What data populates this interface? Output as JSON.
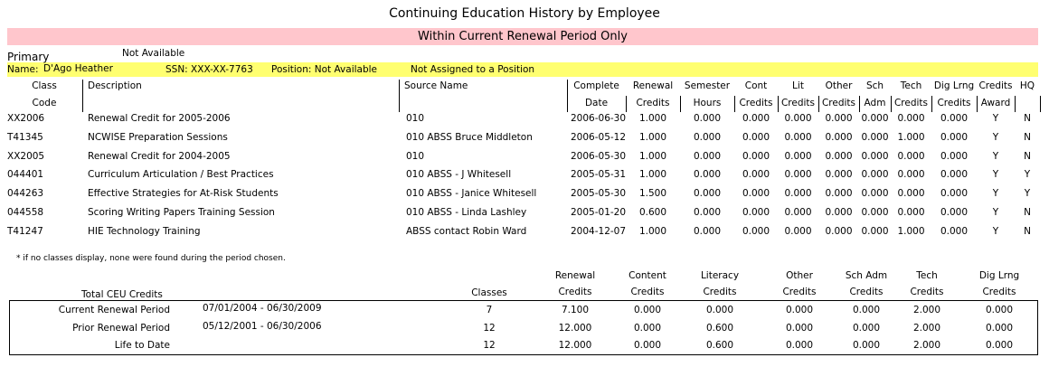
{
  "title": "Continuing Education History by Employee",
  "banner": "Within Current Renewal Period Only",
  "employee": {
    "primary_label": "Primary",
    "status": "Not Available",
    "name_label": "Name:",
    "name": "D'Ago Heather",
    "ssn": "SSN: XXX-XX-7763",
    "position": "Position:  Not Available",
    "assignment": "Not Assigned to a Position"
  },
  "table": {
    "headers": [
      [
        "Class",
        "Code"
      ],
      [
        "Description"
      ],
      [
        "Source Name"
      ],
      [
        "Complete",
        "Date"
      ],
      [
        "Renewal",
        "Credits"
      ],
      [
        "Semester",
        "Hours"
      ],
      [
        "Cont",
        "Credits"
      ],
      [
        "Lit",
        "Credits"
      ],
      [
        "Other",
        "Credits"
      ],
      [
        "Sch",
        "Adm"
      ],
      [
        "Tech",
        "Credits"
      ],
      [
        "Dig Lrng",
        "Credits"
      ],
      [
        "Credits",
        "Award"
      ],
      [
        "HQ"
      ]
    ],
    "rows": [
      [
        "XX2006",
        "Renewal Credit for 2005-2006",
        "010",
        "2006-06-30",
        "1.000",
        "0.000",
        "0.000",
        "0.000",
        "0.000",
        "0.000",
        "0.000",
        "0.000",
        "Y",
        "N"
      ],
      [
        "T41345",
        "NCWISE Preparation Sessions",
        "010 ABSS Bruce Middleton",
        "2006-05-12",
        "1.000",
        "0.000",
        "0.000",
        "0.000",
        "0.000",
        "0.000",
        "1.000",
        "0.000",
        "Y",
        "N"
      ],
      [
        "XX2005",
        "Renewal Credit for 2004-2005",
        "010",
        "2006-05-30",
        "1.000",
        "0.000",
        "0.000",
        "0.000",
        "0.000",
        "0.000",
        "0.000",
        "0.000",
        "Y",
        "N"
      ],
      [
        "044401",
        "Curriculum Articulation / Best Practices",
        "010 ABSS - J Whitesell",
        "2005-05-31",
        "1.000",
        "0.000",
        "0.000",
        "0.000",
        "0.000",
        "0.000",
        "0.000",
        "0.000",
        "Y",
        "Y"
      ],
      [
        "044263",
        "Effective Strategies for At-Risk Students",
        "010 ABSS - Janice Whitesell",
        "2005-05-30",
        "1.500",
        "0.000",
        "0.000",
        "0.000",
        "0.000",
        "0.000",
        "0.000",
        "0.000",
        "Y",
        "Y"
      ],
      [
        "044558",
        "Scoring Writing Papers Training Session",
        "010 ABSS - Linda Lashley",
        "2005-01-20",
        "0.600",
        "0.000",
        "0.000",
        "0.000",
        "0.000",
        "0.000",
        "0.000",
        "0.000",
        "Y",
        "N"
      ],
      [
        "T41247",
        "HIE Technology Training",
        "ABSS contact Robin Ward",
        "2004-12-07",
        "1.000",
        "0.000",
        "0.000",
        "0.000",
        "0.000",
        "0.000",
        "1.000",
        "0.000",
        "Y",
        "N"
      ]
    ]
  },
  "footnote": "* if no classes display, none were found during the period chosen.",
  "totals": {
    "title": "Total CEU Credits",
    "headers": [
      [
        "Classes"
      ],
      [
        "Renewal",
        "Credits"
      ],
      [
        "Content",
        "Credits"
      ],
      [
        "Literacy",
        "Credits"
      ],
      [
        "Other",
        "Credits"
      ],
      [
        "Sch Adm",
        "Credits"
      ],
      [
        "Tech",
        "Credits"
      ],
      [
        "Dig Lrng",
        "Credits"
      ]
    ],
    "rows": [
      {
        "label": "Current Renewal Period",
        "period": "07/01/2004  -  06/30/2009",
        "values": [
          "7",
          "7.100",
          "0.000",
          "0.000",
          "0.000",
          "0.000",
          "2.000",
          "0.000"
        ]
      },
      {
        "label": "Prior Renewal Period",
        "period": "05/12/2001  -  06/30/2006",
        "values": [
          "12",
          "12.000",
          "0.000",
          "0.600",
          "0.000",
          "0.000",
          "2.000",
          "0.000"
        ]
      },
      {
        "label": "Life to Date",
        "values": [
          "12",
          "12.000",
          "0.000",
          "0.600",
          "0.000",
          "0.000",
          "2.000",
          "0.000"
        ]
      }
    ]
  }
}
